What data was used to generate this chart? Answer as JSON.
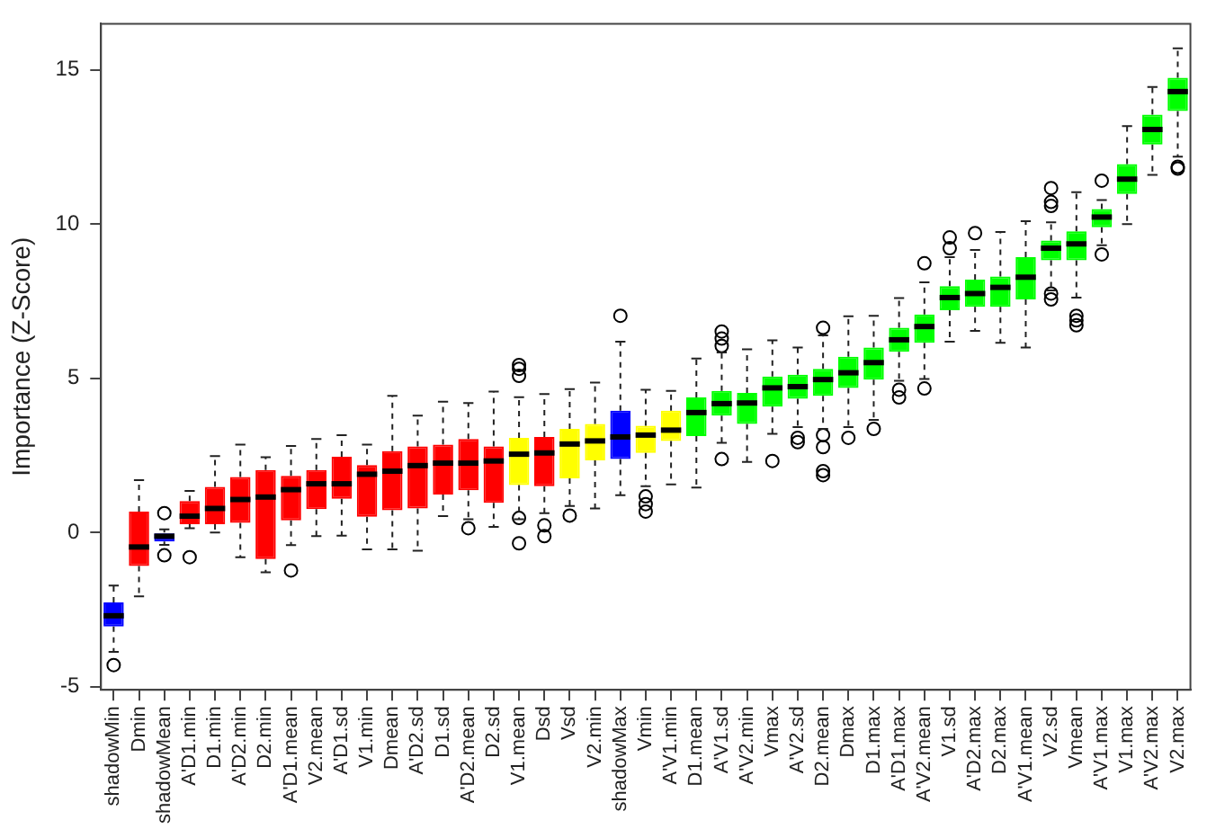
{
  "chart_data": {
    "type": "box",
    "ylabel": "Importance (Z-Score)",
    "ylim": [
      -5.1,
      16.5
    ],
    "yticks": [
      -5,
      0,
      5,
      10,
      15
    ],
    "grid": false,
    "legend": false,
    "categories": [
      "shadowMin",
      "Dmin",
      "shadowMean",
      "A'D1.min",
      "D1.min",
      "A'D2.min",
      "D2.min",
      "A'D1.mean",
      "V2.mean",
      "A'D1.sd",
      "V1.min",
      "Dmean",
      "A'D2.sd",
      "D1.sd",
      "A'D2.mean",
      "D2.sd",
      "V1.mean",
      "Dsd",
      "Vsd",
      "V2.min",
      "shadowMax",
      "Vmin",
      "A'V1.min",
      "D1.mean",
      "A'V1.sd",
      "A'V2.min",
      "Vmax",
      "A'V2.sd",
      "D2.mean",
      "Dmax",
      "D1.max",
      "A'D1.max",
      "A'V2.mean",
      "V1.sd",
      "A'D2.max",
      "D2.max",
      "A'V1.mean",
      "V2.sd",
      "Vmean",
      "A'V1.max",
      "V1.max",
      "A'V2.max",
      "V2.max"
    ],
    "colors": [
      "#0000ff",
      "#ff0000",
      "#0000ff",
      "#ff0000",
      "#ff0000",
      "#ff0000",
      "#ff0000",
      "#ff0000",
      "#ff0000",
      "#ff0000",
      "#ff0000",
      "#ff0000",
      "#ff0000",
      "#ff0000",
      "#ff0000",
      "#ff0000",
      "#ffff00",
      "#ff0000",
      "#ffff00",
      "#ffff00",
      "#0000ff",
      "#ffff00",
      "#ffff00",
      "#00ff00",
      "#00ff00",
      "#00ff00",
      "#00ff00",
      "#00ff00",
      "#00ff00",
      "#00ff00",
      "#00ff00",
      "#00ff00",
      "#00ff00",
      "#00ff00",
      "#00ff00",
      "#00ff00",
      "#00ff00",
      "#00ff00",
      "#00ff00",
      "#00ff00",
      "#00ff00",
      "#00ff00",
      "#00ff00"
    ],
    "boxes": [
      {
        "low": -3.87,
        "q1": -3.05,
        "median": -2.7,
        "q3": -2.27,
        "high": -1.72,
        "outliers": [
          -4.3
        ]
      },
      {
        "low": -2.07,
        "q1": -1.09,
        "median": -0.47,
        "q3": 0.68,
        "high": 1.7
      },
      {
        "low": -0.4,
        "q1": -0.29,
        "median": -0.12,
        "q3": 0.0,
        "high": 0.1,
        "outliers": [
          0.63,
          -0.74
        ]
      },
      {
        "low": 0.14,
        "q1": 0.27,
        "median": 0.53,
        "q3": 1.02,
        "high": 1.35,
        "outliers": [
          -0.8
        ]
      },
      {
        "low": 0.0,
        "q1": 0.27,
        "median": 0.78,
        "q3": 1.48,
        "high": 2.48
      },
      {
        "low": -0.8,
        "q1": 0.31,
        "median": 1.07,
        "q3": 1.8,
        "high": 2.85
      },
      {
        "low": -1.29,
        "q1": -0.86,
        "median": 1.15,
        "q3": 2.03,
        "high": 2.44
      },
      {
        "low": -0.41,
        "q1": 0.39,
        "median": 1.39,
        "q3": 1.84,
        "high": 2.81,
        "outliers": [
          -1.23
        ]
      },
      {
        "low": -0.12,
        "q1": 0.76,
        "median": 1.58,
        "q3": 2.03,
        "high": 3.03
      },
      {
        "low": -0.1,
        "q1": 1.09,
        "median": 1.58,
        "q3": 2.46,
        "high": 3.16
      },
      {
        "low": -0.55,
        "q1": 0.51,
        "median": 1.89,
        "q3": 2.19,
        "high": 2.85
      },
      {
        "low": -0.55,
        "q1": 0.72,
        "median": 1.99,
        "q3": 2.64,
        "high": 4.43
      },
      {
        "low": -0.59,
        "q1": 0.78,
        "median": 2.17,
        "q3": 2.79,
        "high": 3.79
      },
      {
        "low": 0.53,
        "q1": 1.23,
        "median": 2.25,
        "q3": 2.85,
        "high": 4.24
      },
      {
        "low": 0.43,
        "q1": 1.37,
        "median": 2.25,
        "q3": 3.03,
        "high": 4.2,
        "outliers": [
          0.14
        ]
      },
      {
        "low": 0.18,
        "q1": 0.96,
        "median": 2.32,
        "q3": 2.79,
        "high": 4.57
      },
      {
        "low": 0.43,
        "q1": 1.54,
        "median": 2.54,
        "q3": 3.07,
        "high": 4.39,
        "outliers": [
          5.43,
          5.31,
          5.08,
          0.47,
          -0.35
        ]
      },
      {
        "low": 0.63,
        "q1": 1.5,
        "median": 2.58,
        "q3": 3.1,
        "high": 4.49,
        "outliers": [
          0.23,
          -0.12
        ]
      },
      {
        "low": 0.86,
        "q1": 1.76,
        "median": 2.87,
        "q3": 3.36,
        "high": 4.65,
        "outliers": [
          0.55
        ]
      },
      {
        "low": 0.78,
        "q1": 2.34,
        "median": 2.97,
        "q3": 3.52,
        "high": 4.86
      },
      {
        "low": 1.21,
        "q1": 2.38,
        "median": 3.1,
        "q3": 3.95,
        "high": 6.19,
        "outliers": [
          7.03
        ]
      },
      {
        "low": 1.5,
        "q1": 2.58,
        "median": 3.16,
        "q3": 3.46,
        "high": 4.63,
        "outliers": [
          1.17,
          0.92,
          0.68
        ]
      },
      {
        "low": 1.56,
        "q1": 2.97,
        "median": 3.32,
        "q3": 3.95,
        "high": 4.59
      },
      {
        "low": 1.46,
        "q1": 3.13,
        "median": 3.89,
        "q3": 4.38,
        "high": 5.64
      },
      {
        "low": 2.91,
        "q1": 3.79,
        "median": 4.18,
        "q3": 4.59,
        "high": 5.84,
        "outliers": [
          6.52,
          6.29,
          6.05,
          2.38
        ]
      },
      {
        "low": 2.29,
        "q1": 3.52,
        "median": 4.2,
        "q3": 4.53,
        "high": 5.94
      },
      {
        "low": 3.2,
        "q1": 4.08,
        "median": 4.69,
        "q3": 5.06,
        "high": 6.23,
        "outliers": [
          2.32
        ]
      },
      {
        "low": 3.42,
        "q1": 4.34,
        "median": 4.73,
        "q3": 5.12,
        "high": 6.0,
        "outliers": [
          3.07,
          2.93
        ]
      },
      {
        "low": 3.36,
        "q1": 4.43,
        "median": 4.96,
        "q3": 5.31,
        "high": 6.39,
        "outliers": [
          6.64,
          3.16,
          2.77,
          1.99,
          1.86
        ]
      },
      {
        "low": 3.42,
        "q1": 4.69,
        "median": 5.18,
        "q3": 5.7,
        "high": 7.01,
        "outliers": [
          3.07
        ]
      },
      {
        "low": 3.65,
        "q1": 4.96,
        "median": 5.51,
        "q3": 6.0,
        "high": 7.03,
        "outliers": [
          3.36
        ]
      },
      {
        "low": 4.92,
        "q1": 5.86,
        "median": 6.25,
        "q3": 6.64,
        "high": 7.6,
        "outliers": [
          4.63,
          4.38
        ]
      },
      {
        "low": 4.98,
        "q1": 6.15,
        "median": 6.68,
        "q3": 7.07,
        "high": 8.11,
        "outliers": [
          8.73,
          4.67
        ]
      },
      {
        "low": 6.19,
        "q1": 7.21,
        "median": 7.62,
        "q3": 7.99,
        "high": 8.93,
        "outliers": [
          9.57,
          9.22
        ]
      },
      {
        "low": 6.54,
        "q1": 7.32,
        "median": 7.75,
        "q3": 8.2,
        "high": 9.16,
        "outliers": [
          9.71
        ]
      },
      {
        "low": 6.15,
        "q1": 7.32,
        "median": 7.95,
        "q3": 8.3,
        "high": 9.75
      },
      {
        "low": 6.0,
        "q1": 7.56,
        "median": 8.28,
        "q3": 8.93,
        "high": 10.1
      },
      {
        "low": 7.85,
        "q1": 8.83,
        "median": 9.22,
        "q3": 9.47,
        "high": 10.06,
        "outliers": [
          11.17,
          10.72,
          10.59,
          7.75,
          7.56
        ]
      },
      {
        "low": 7.62,
        "q1": 8.83,
        "median": 9.36,
        "q3": 9.77,
        "high": 11.04,
        "outliers": [
          7.03,
          6.88,
          6.72
        ]
      },
      {
        "low": 9.32,
        "q1": 9.9,
        "median": 10.23,
        "q3": 10.49,
        "high": 10.78,
        "outliers": [
          11.41,
          9.02
        ]
      },
      {
        "low": 10.0,
        "q1": 10.98,
        "median": 11.46,
        "q3": 11.95,
        "high": 13.18
      },
      {
        "low": 11.6,
        "q1": 12.58,
        "median": 13.07,
        "q3": 13.55,
        "high": 14.45
      },
      {
        "low": 12.19,
        "q1": 13.67,
        "median": 14.3,
        "q3": 14.75,
        "high": 15.7,
        "outliers": [
          11.86,
          11.8
        ]
      }
    ]
  }
}
